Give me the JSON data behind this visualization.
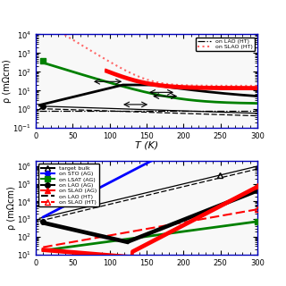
{
  "border_color": "#0000bb",
  "bg_color": "#f8f8f8",
  "top_panel": {
    "ylabel": "ρ (mΩcm)",
    "xlabel": "T (K)",
    "ylim": [
      0.1,
      20000
    ],
    "xlim": [
      0,
      300
    ],
    "series": {
      "bulk1": {
        "color": "black",
        "lw": 1.0,
        "ls": "-"
      },
      "bulk2": {
        "color": "black",
        "lw": 1.0,
        "ls": "--"
      },
      "lao_ht": {
        "color": "black",
        "lw": 1.0,
        "ls": "-."
      },
      "lsat_ag": {
        "color": "green",
        "lw": 2.0,
        "ls": "-"
      },
      "lao_ag": {
        "color": "black",
        "lw": 2.0,
        "ls": "-"
      },
      "slao_ag1": {
        "color": "red",
        "lw": 2.0,
        "ls": "-"
      },
      "slao_ag2": {
        "color": "red",
        "lw": 2.0,
        "ls": "-"
      },
      "slao_ht": {
        "color": "#ff6666",
        "lw": 1.5,
        "ls": ":"
      }
    }
  },
  "bottom_panel": {
    "ylabel": "ρ (mΩcm)",
    "ylim": [
      10,
      2000000
    ],
    "xlim": [
      0,
      300
    ],
    "series": {
      "bulk1": {
        "color": "black",
        "lw": 1.0,
        "ls": "-"
      },
      "bulk2": {
        "color": "black",
        "lw": 1.0,
        "ls": "--"
      },
      "sto_ag": {
        "color": "blue",
        "lw": 2.0,
        "ls": "-"
      },
      "lsat_ag": {
        "color": "green",
        "lw": 2.0,
        "ls": "-"
      },
      "lao_ag1": {
        "color": "black",
        "lw": 2.0,
        "ls": "-"
      },
      "lao_ag2": {
        "color": "black",
        "lw": 2.0,
        "ls": "-"
      },
      "slao_ag1": {
        "color": "red",
        "lw": 2.5,
        "ls": "-"
      },
      "slao_ag2": {
        "color": "red",
        "lw": 2.5,
        "ls": "-"
      },
      "lao_ht": {
        "color": "black",
        "lw": 1.0,
        "ls": "--"
      },
      "slao_ht": {
        "color": "red",
        "lw": 1.5,
        "ls": "--"
      }
    },
    "legend": [
      {
        "label": "target bulk",
        "color": "black",
        "ls": "-",
        "marker": "^",
        "mfc": "none"
      },
      {
        "label": "on STO (AG)",
        "color": "blue",
        "ls": "-",
        "marker": "o",
        "mfc": "blue"
      },
      {
        "label": "on LSAT (AG)",
        "color": "green",
        "ls": "-",
        "marker": "s",
        "mfc": "green"
      },
      {
        "label": "on LAO (AG)",
        "color": "black",
        "ls": "-",
        "marker": "o",
        "mfc": "black"
      },
      {
        "label": "on SLAO (AG)",
        "color": "red",
        "ls": "-",
        "marker": "^",
        "mfc": "red"
      },
      {
        "label": "on LAO (HT)",
        "color": "black",
        "ls": "--",
        "marker": null
      },
      {
        "label": "on SLAO (HT)",
        "color": "red",
        "ls": "--",
        "marker": "^",
        "mfc": "none"
      }
    ]
  },
  "top_legend": [
    {
      "label": "on LAO (HT)",
      "color": "black",
      "ls": "-."
    },
    {
      "label": "on SLAO (HT)",
      "color": "#ff6666",
      "ls": ":"
    }
  ]
}
